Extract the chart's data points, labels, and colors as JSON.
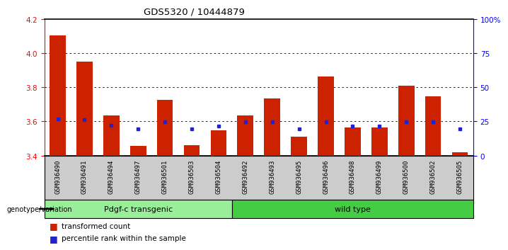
{
  "title": "GDS5320 / 10444879",
  "categories": [
    "GSM936490",
    "GSM936491",
    "GSM936494",
    "GSM936497",
    "GSM936501",
    "GSM936503",
    "GSM936504",
    "GSM936492",
    "GSM936493",
    "GSM936495",
    "GSM936496",
    "GSM936498",
    "GSM936499",
    "GSM936500",
    "GSM936502",
    "GSM936505"
  ],
  "red_values": [
    4.105,
    3.95,
    3.635,
    3.455,
    3.725,
    3.46,
    3.55,
    3.635,
    3.735,
    3.51,
    3.865,
    3.565,
    3.565,
    3.81,
    3.745,
    3.42
  ],
  "blue_values": [
    3.615,
    3.61,
    3.575,
    3.555,
    3.598,
    3.558,
    3.573,
    3.598,
    3.598,
    3.558,
    3.598,
    3.573,
    3.573,
    3.598,
    3.598,
    3.555
  ],
  "group1_label": "Pdgf-c transgenic",
  "group1_count": 7,
  "group2_label": "wild type",
  "group2_count": 9,
  "ylim_left": [
    3.4,
    4.2
  ],
  "ylim_right": [
    0,
    100
  ],
  "yticks_left": [
    3.4,
    3.6,
    3.8,
    4.0,
    4.2
  ],
  "yticks_right": [
    0,
    25,
    50,
    75,
    100
  ],
  "ytick_labels_right": [
    "0",
    "25",
    "50",
    "75",
    "100%"
  ],
  "grid_values": [
    3.6,
    3.8,
    4.0
  ],
  "bar_color": "#cc2200",
  "blue_color": "#2222cc",
  "group1_color": "#99ee99",
  "group2_color": "#44cc44",
  "xtick_bg_color": "#cccccc",
  "legend_transformed": "transformed count",
  "legend_percentile": "percentile rank within the sample",
  "genotype_label": "genotype/variation",
  "bar_bottom": 3.4
}
